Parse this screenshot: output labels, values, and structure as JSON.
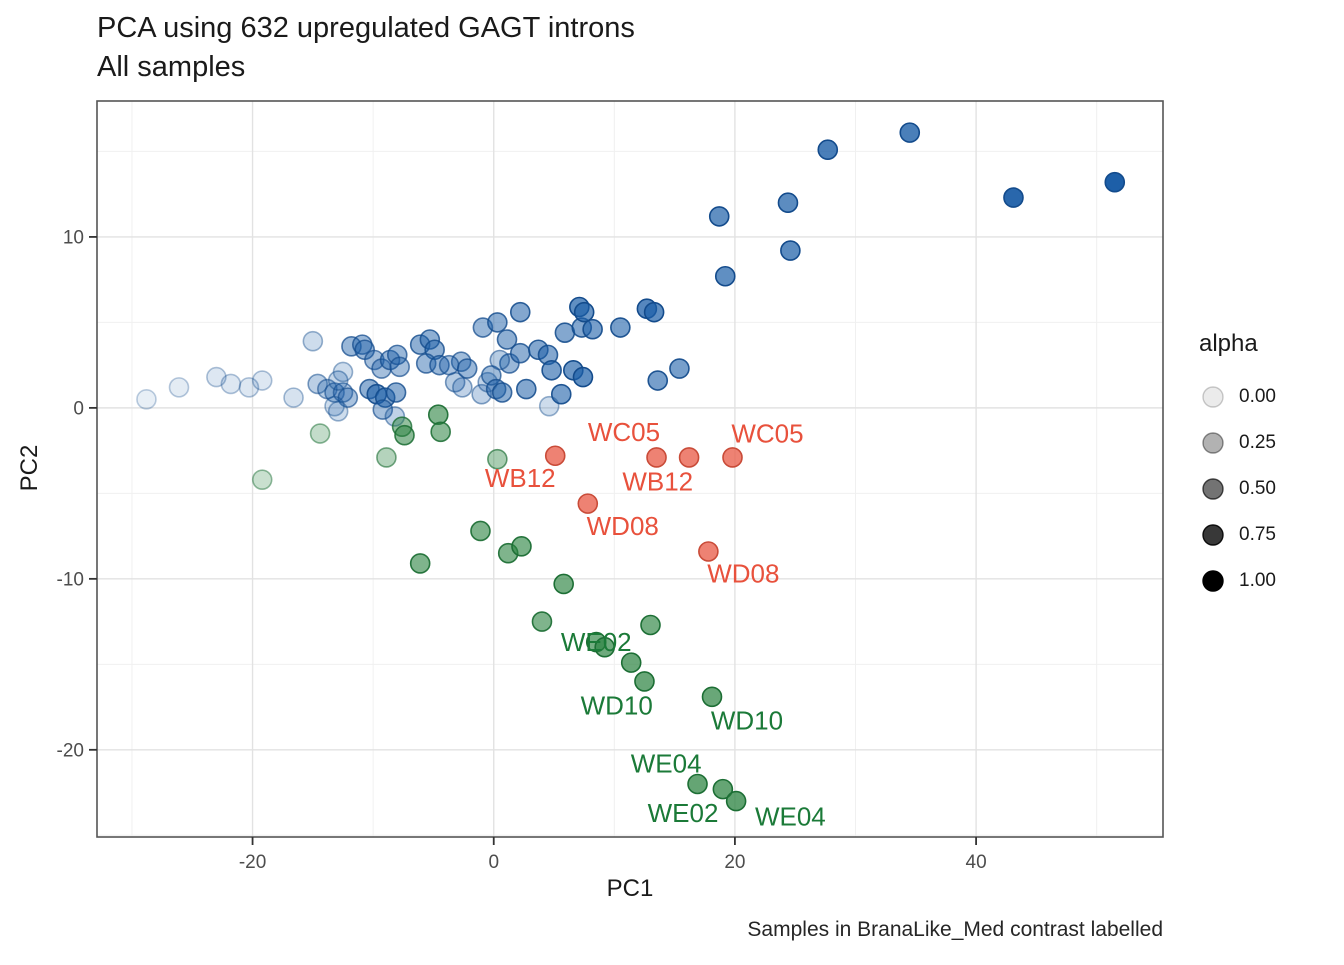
{
  "figure": {
    "title": "PCA using 632 upregulated GAGT introns",
    "subtitle": "All samples",
    "caption": "Samples in BranaLike_Med contrast labelled"
  },
  "chart_data": {
    "type": "scatter",
    "title": "PCA using 632 upregulated GAGT introns",
    "subtitle": "All samples",
    "caption": "Samples in BranaLike_Med contrast labelled",
    "xlabel": "PC1",
    "ylabel": "PC2",
    "xlim": [
      -32.9,
      55.5
    ],
    "ylim": [
      -25.1,
      17.95
    ],
    "grid": true,
    "x_ticks": {
      "values": [
        -20,
        0,
        20,
        40
      ],
      "labels": [
        "-20",
        "0",
        "20",
        "40"
      ]
    },
    "y_ticks": {
      "values": [
        -20,
        -10,
        0,
        10
      ],
      "labels": [
        "-20",
        "-10",
        "0",
        "10"
      ]
    },
    "x_minor_gridlines": [
      -30,
      -10,
      10,
      30,
      50
    ],
    "y_minor_gridlines": [
      -25,
      -15,
      -5,
      5,
      15
    ],
    "legend": {
      "title": "alpha",
      "position": "right",
      "items": [
        {
          "label": "0.00",
          "alpha": 0.08
        },
        {
          "label": "0.25",
          "alpha": 0.3
        },
        {
          "label": "0.50",
          "alpha": 0.55
        },
        {
          "label": "0.75",
          "alpha": 0.78
        },
        {
          "label": "1.00",
          "alpha": 1.0
        }
      ]
    },
    "series": [
      {
        "name": "blue-samples",
        "color": "#1D5FA8",
        "stroke": "#134B8C",
        "points": [
          [
            -28.8,
            0.5,
            0.1
          ],
          [
            -26.1,
            1.2,
            0.12
          ],
          [
            -23.0,
            1.8,
            0.15
          ],
          [
            -21.8,
            1.4,
            0.15
          ],
          [
            -20.3,
            1.2,
            0.15
          ],
          [
            -19.2,
            1.6,
            0.15
          ],
          [
            -16.6,
            0.6,
            0.18
          ],
          [
            -15.0,
            3.9,
            0.22
          ],
          [
            -14.6,
            1.4,
            0.3
          ],
          [
            -13.8,
            1.1,
            0.32
          ],
          [
            -13.2,
            0.9,
            0.35
          ],
          [
            -12.5,
            0.9,
            0.35
          ],
          [
            -12.1,
            0.6,
            0.38
          ],
          [
            -12.9,
            1.6,
            0.25
          ],
          [
            -12.5,
            2.1,
            0.22
          ],
          [
            -13.2,
            0.1,
            0.22
          ],
          [
            -12.9,
            -0.2,
            0.22
          ],
          [
            -11.8,
            3.6,
            0.45
          ],
          [
            -10.9,
            3.7,
            0.45
          ],
          [
            -10.7,
            3.4,
            0.45
          ],
          [
            -9.9,
            2.8,
            0.4
          ],
          [
            -9.3,
            2.3,
            0.4
          ],
          [
            -8.6,
            2.8,
            0.45
          ],
          [
            -8.0,
            3.1,
            0.45
          ],
          [
            -7.8,
            2.4,
            0.4
          ],
          [
            -10.3,
            1.1,
            0.5
          ],
          [
            -9.7,
            0.8,
            0.6
          ],
          [
            -9.0,
            0.6,
            0.55
          ],
          [
            -9.2,
            -0.1,
            0.4
          ],
          [
            -8.2,
            -0.5,
            0.28
          ],
          [
            -8.1,
            0.9,
            0.5
          ],
          [
            -6.1,
            3.7,
            0.5
          ],
          [
            -5.3,
            4.0,
            0.5
          ],
          [
            -4.9,
            3.4,
            0.5
          ],
          [
            -5.6,
            2.6,
            0.45
          ],
          [
            -4.5,
            2.5,
            0.45
          ],
          [
            -3.2,
            1.5,
            0.32
          ],
          [
            -2.7,
            2.7,
            0.42
          ],
          [
            -2.2,
            2.3,
            0.45
          ],
          [
            -3.7,
            2.5,
            0.38
          ],
          [
            -2.6,
            1.2,
            0.28
          ],
          [
            -1.0,
            0.8,
            0.28
          ],
          [
            -0.5,
            1.5,
            0.28
          ],
          [
            -0.2,
            1.9,
            0.42
          ],
          [
            0.2,
            1.1,
            0.48
          ],
          [
            0.7,
            0.9,
            0.5
          ],
          [
            1.3,
            2.6,
            0.45
          ],
          [
            0.5,
            2.8,
            0.32
          ],
          [
            -0.9,
            4.7,
            0.45
          ],
          [
            0.3,
            5.0,
            0.5
          ],
          [
            1.1,
            4.0,
            0.5
          ],
          [
            2.2,
            5.6,
            0.55
          ],
          [
            2.7,
            1.1,
            0.55
          ],
          [
            2.2,
            3.2,
            0.5
          ],
          [
            3.7,
            3.4,
            0.55
          ],
          [
            4.5,
            3.1,
            0.55
          ],
          [
            4.8,
            2.2,
            0.6
          ],
          [
            5.6,
            0.8,
            0.6
          ],
          [
            4.6,
            0.1,
            0.22
          ],
          [
            5.9,
            4.4,
            0.55
          ],
          [
            7.3,
            4.7,
            0.55
          ],
          [
            8.2,
            4.6,
            0.6
          ],
          [
            7.1,
            5.9,
            0.7
          ],
          [
            7.5,
            5.6,
            0.65
          ],
          [
            6.6,
            2.2,
            0.65
          ],
          [
            7.4,
            1.8,
            0.7
          ],
          [
            10.5,
            4.7,
            0.6
          ],
          [
            12.7,
            5.8,
            0.75
          ],
          [
            13.3,
            5.6,
            0.7
          ],
          [
            13.6,
            1.6,
            0.6
          ],
          [
            15.4,
            2.3,
            0.6
          ],
          [
            18.7,
            11.2,
            0.7
          ],
          [
            19.2,
            7.7,
            0.7
          ],
          [
            24.4,
            12.0,
            0.72
          ],
          [
            24.6,
            9.2,
            0.72
          ],
          [
            27.7,
            15.1,
            0.8
          ],
          [
            34.5,
            16.1,
            0.8
          ],
          [
            43.1,
            12.3,
            0.95
          ],
          [
            51.5,
            13.2,
            1.0
          ]
        ]
      },
      {
        "name": "green-samples",
        "color": "#29823F",
        "stroke": "#1C6E34",
        "points": [
          [
            -19.2,
            -4.2,
            0.25
          ],
          [
            -14.4,
            -1.5,
            0.28
          ],
          [
            -8.9,
            -2.9,
            0.35
          ],
          [
            -7.6,
            -1.1,
            0.5
          ],
          [
            -7.4,
            -1.6,
            0.55
          ],
          [
            -4.6,
            -0.4,
            0.6
          ],
          [
            -4.4,
            -1.4,
            0.55
          ],
          [
            0.3,
            -3.0,
            0.4
          ],
          [
            -1.1,
            -7.2,
            0.6
          ],
          [
            -6.1,
            -9.1,
            0.6
          ],
          [
            1.2,
            -8.5,
            0.6
          ],
          [
            2.3,
            -8.1,
            0.62
          ],
          [
            5.8,
            -10.3,
            0.65
          ],
          [
            4.0,
            -12.5,
            0.6
          ],
          [
            8.5,
            -13.7,
            0.65
          ],
          [
            9.2,
            -14.0,
            0.68
          ],
          [
            13.0,
            -12.7,
            0.65
          ],
          [
            11.4,
            -14.9,
            0.7
          ],
          [
            12.5,
            -16.0,
            0.7
          ],
          [
            18.1,
            -16.9,
            0.7
          ],
          [
            16.9,
            -22.0,
            0.72
          ],
          [
            19.0,
            -22.3,
            0.72
          ],
          [
            20.1,
            -23.0,
            0.75
          ]
        ]
      },
      {
        "name": "red-samples",
        "color": "#EA6350",
        "stroke": "#C94B38",
        "points": [
          [
            5.1,
            -2.8,
            0.8
          ],
          [
            13.5,
            -2.9,
            0.8
          ],
          [
            16.2,
            -2.9,
            0.8
          ],
          [
            19.8,
            -2.9,
            0.8
          ],
          [
            7.8,
            -5.6,
            0.8
          ],
          [
            17.8,
            -8.4,
            0.8
          ]
        ]
      }
    ],
    "point_labels": [
      {
        "text": "WC05",
        "x": 10.8,
        "y": -1.4,
        "color": "#E8513C"
      },
      {
        "text": "WC05",
        "x": 22.7,
        "y": -1.5,
        "color": "#E8513C"
      },
      {
        "text": "WB12",
        "x": 2.2,
        "y": -4.1,
        "color": "#E8513C"
      },
      {
        "text": "WB12",
        "x": 13.6,
        "y": -4.3,
        "color": "#E8513C"
      },
      {
        "text": "WD08",
        "x": 10.7,
        "y": -6.9,
        "color": "#E8513C"
      },
      {
        "text": "WD08",
        "x": 20.7,
        "y": -9.7,
        "color": "#E8513C"
      },
      {
        "text": "WE02",
        "x": 8.5,
        "y": -13.7,
        "color": "#1B7A38"
      },
      {
        "text": "WD10",
        "x": 10.2,
        "y": -17.4,
        "color": "#1B7A38"
      },
      {
        "text": "WD10",
        "x": 21.0,
        "y": -18.3,
        "color": "#1B7A38"
      },
      {
        "text": "WE04",
        "x": 14.3,
        "y": -20.8,
        "color": "#1B7A38"
      },
      {
        "text": "WE02",
        "x": 15.7,
        "y": -23.7,
        "color": "#1B7A38"
      },
      {
        "text": "WE04",
        "x": 24.6,
        "y": -23.9,
        "color": "#1B7A38"
      }
    ],
    "style": {
      "panel_background": "#ffffff",
      "panel_border": "#555555",
      "grid_major": "#e2e2e2",
      "grid_minor": "#f0f0f0",
      "tick_color": "#333333",
      "tick_label_color": "#4d4d4d",
      "point_radius": 9.5
    }
  }
}
